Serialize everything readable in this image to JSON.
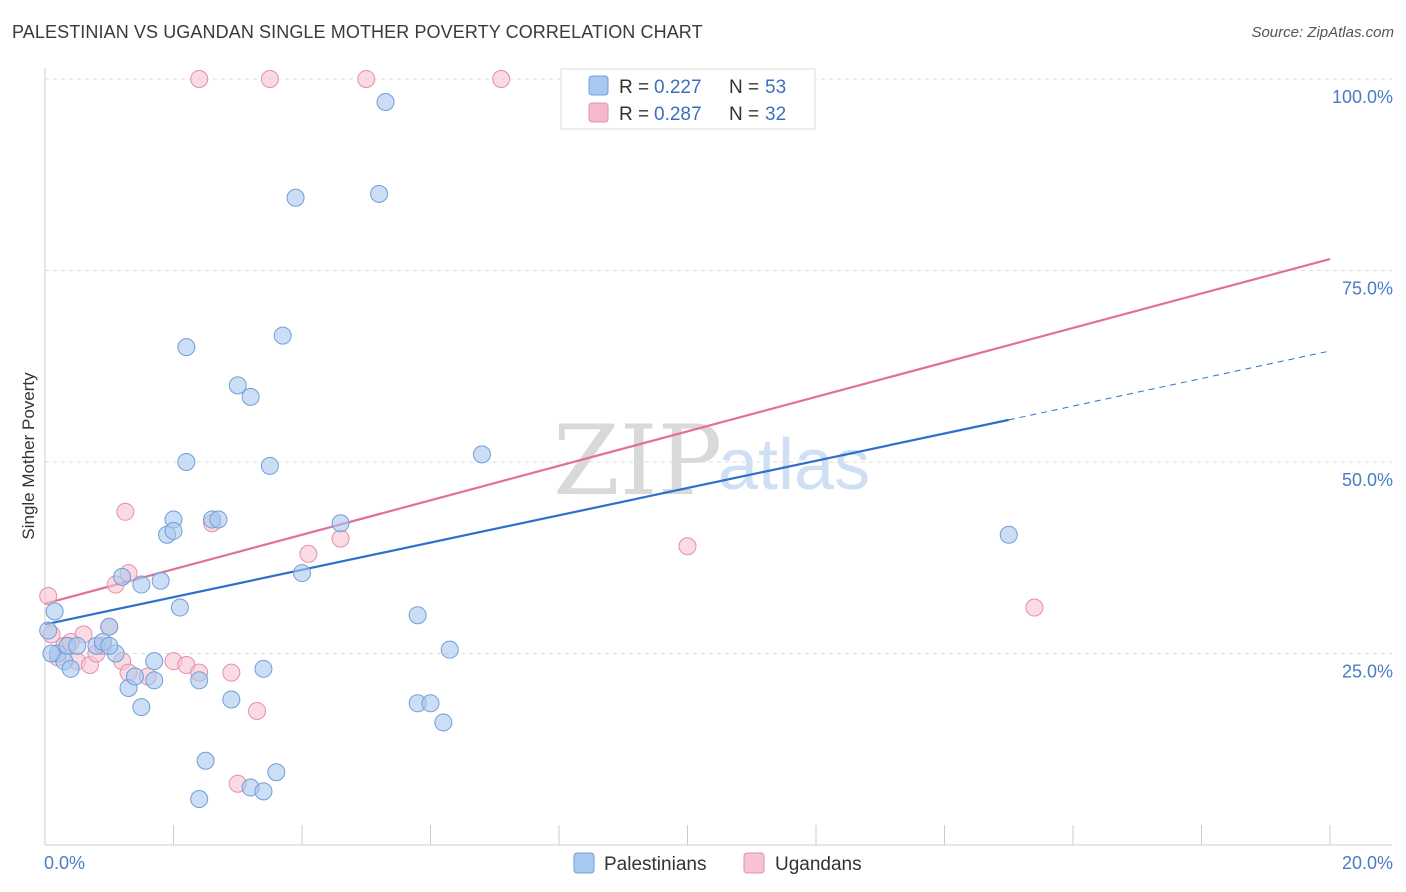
{
  "title": "PALESTINIAN VS UGANDAN SINGLE MOTHER POVERTY CORRELATION CHART",
  "source": "Source: ZipAtlas.com",
  "watermark": {
    "zip": "ZIP",
    "atlas": "atlas"
  },
  "legend_top": [
    {
      "r_label": "R =",
      "r_value": "0.227",
      "n_label": "N =",
      "n_value": "53",
      "color": "#a9c8ef"
    },
    {
      "r_label": "R =",
      "r_value": "0.287",
      "n_label": "N =",
      "n_value": "32",
      "color": "#f6b8cb"
    }
  ],
  "colors": {
    "palestinians_fill": "#a9c8ef",
    "palestinians_stroke": "#6f9fd8",
    "palestinians_line": "#2f6fcb",
    "ugandans_fill": "#f6c3d2",
    "ugandans_stroke": "#e58fab",
    "ugandans_line": "#e0709a",
    "tick_text": "#4a7cc4",
    "grid": "#dddddd"
  },
  "chart_data": {
    "type": "scatter",
    "title": "PALESTINIAN VS UGANDAN SINGLE MOTHER POVERTY CORRELATION CHART",
    "xlabel": "",
    "ylabel": "Single Mother Poverty",
    "xlim": [
      0,
      20
    ],
    "ylim": [
      0,
      100
    ],
    "x_tick_labels": [
      "0.0%",
      "20.0%"
    ],
    "y_tick_labels": [
      "25.0%",
      "50.0%",
      "75.0%",
      "100.0%"
    ],
    "y_ticks": [
      25,
      50,
      75,
      100
    ],
    "grid": "horizontal dashed",
    "legend_position": "bottom",
    "series": [
      {
        "name": "Palestinians",
        "points": [
          [
            0.05,
            28
          ],
          [
            0.2,
            25
          ],
          [
            0.3,
            24
          ],
          [
            0.4,
            23
          ],
          [
            0.35,
            26
          ],
          [
            0.5,
            26
          ],
          [
            0.8,
            26
          ],
          [
            0.9,
            26.5
          ],
          [
            1.0,
            28.5
          ],
          [
            1.1,
            25
          ],
          [
            1.2,
            35
          ],
          [
            1.3,
            20.5
          ],
          [
            1.4,
            22
          ],
          [
            1.5,
            18
          ],
          [
            1.5,
            34
          ],
          [
            1.7,
            24
          ],
          [
            1.7,
            21.5
          ],
          [
            1.8,
            34.5
          ],
          [
            1.9,
            40.5
          ],
          [
            2.0,
            42.5
          ],
          [
            2.0,
            41
          ],
          [
            2.1,
            31
          ],
          [
            2.2,
            65
          ],
          [
            2.2,
            50
          ],
          [
            2.4,
            6
          ],
          [
            2.4,
            21.5
          ],
          [
            2.5,
            11
          ],
          [
            2.6,
            42.5
          ],
          [
            2.7,
            42.5
          ],
          [
            2.9,
            19
          ],
          [
            3.0,
            60
          ],
          [
            3.2,
            58.5
          ],
          [
            3.2,
            7.5
          ],
          [
            3.4,
            7
          ],
          [
            3.4,
            23
          ],
          [
            3.5,
            49.5
          ],
          [
            3.6,
            9.5
          ],
          [
            3.7,
            66.5
          ],
          [
            3.9,
            84.5
          ],
          [
            4.0,
            35.5
          ],
          [
            4.6,
            42
          ],
          [
            5.2,
            85
          ],
          [
            5.3,
            97
          ],
          [
            5.8,
            18.5
          ],
          [
            5.8,
            30
          ],
          [
            6.0,
            18.5
          ],
          [
            6.2,
            16
          ],
          [
            6.3,
            25.5
          ],
          [
            6.8,
            51
          ],
          [
            15.0,
            40.5
          ],
          [
            0.15,
            30.5
          ],
          [
            0.1,
            25
          ],
          [
            1.0,
            26
          ]
        ],
        "trend": {
          "x": [
            0,
            15.0
          ],
          "y": [
            28.8,
            55.5
          ],
          "dashed_extension": {
            "x": [
              15.0,
              20.0
            ],
            "y": [
              55.5,
              64.5
            ]
          }
        }
      },
      {
        "name": "Ugandans",
        "points": [
          [
            0.05,
            32.5
          ],
          [
            0.1,
            27.5
          ],
          [
            0.2,
            24.5
          ],
          [
            0.3,
            26
          ],
          [
            0.5,
            24
          ],
          [
            0.6,
            27.5
          ],
          [
            0.7,
            23.5
          ],
          [
            0.8,
            25
          ],
          [
            0.9,
            26
          ],
          [
            1.0,
            28.5
          ],
          [
            1.1,
            34
          ],
          [
            1.2,
            24
          ],
          [
            1.25,
            43.5
          ],
          [
            1.3,
            35.5
          ],
          [
            1.3,
            22.5
          ],
          [
            1.6,
            22
          ],
          [
            2.0,
            24
          ],
          [
            2.2,
            23.5
          ],
          [
            2.4,
            22.5
          ],
          [
            2.6,
            42
          ],
          [
            2.9,
            22.5
          ],
          [
            3.0,
            8
          ],
          [
            3.3,
            17.5
          ],
          [
            4.1,
            38
          ],
          [
            4.6,
            40
          ],
          [
            2.4,
            100
          ],
          [
            3.5,
            100
          ],
          [
            5.0,
            100
          ],
          [
            7.1,
            100
          ],
          [
            10.0,
            39
          ],
          [
            15.4,
            31
          ],
          [
            0.4,
            26.5
          ]
        ],
        "trend": {
          "x": [
            0,
            20.0
          ],
          "y": [
            31.5,
            76.5
          ]
        }
      }
    ]
  },
  "legend_bottom": [
    {
      "label": "Palestinians",
      "color": "#a9c8ef"
    },
    {
      "label": "Ugandans",
      "color": "#f6c3d2"
    }
  ]
}
